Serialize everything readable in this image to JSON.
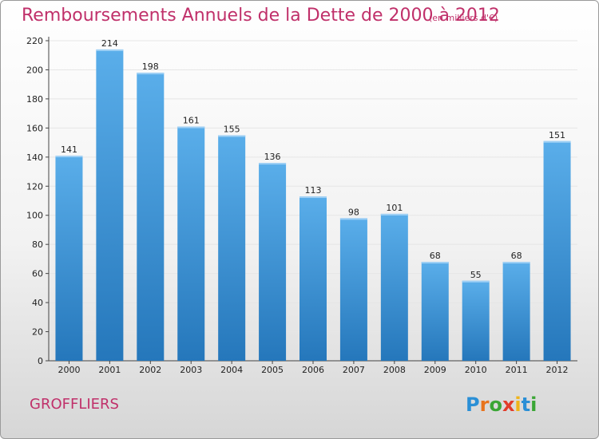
{
  "header": {
    "title": "Remboursements Annuels de la Dette de 2000 à 2012",
    "unit": "(en milliers d'€)"
  },
  "footer": {
    "town": "GROFFLIERS",
    "logo_letters": [
      "P",
      "r",
      "o",
      "x",
      "i",
      "t",
      "i"
    ],
    "logo_colors": [
      "#2a8fd6",
      "#e8731c",
      "#3aa635",
      "#e23c2a",
      "#f0b419",
      "#2a8fd6",
      "#3aa635"
    ]
  },
  "colors": {
    "bar_top": "#5aaeea",
    "bar_bottom": "#2577bb",
    "text": "#c0306a",
    "grid": "#e6e6e6"
  },
  "chart_data": {
    "type": "bar",
    "title": "Remboursements Annuels de la Dette de 2000 à 2012",
    "unit": "(en milliers d'€)",
    "categories": [
      "2000",
      "2001",
      "2002",
      "2003",
      "2004",
      "2005",
      "2006",
      "2007",
      "2008",
      "2009",
      "2010",
      "2011",
      "2012"
    ],
    "values": [
      141,
      214,
      198,
      161,
      155,
      136,
      113,
      98,
      101,
      68,
      55,
      68,
      151
    ],
    "data_labels": [
      "141",
      "214",
      "198",
      "161",
      "155",
      "136",
      "113",
      "98",
      "101",
      "68",
      "55",
      "68",
      "151"
    ],
    "yticks": [
      "0",
      "20",
      "40",
      "60",
      "80",
      "100",
      "120",
      "140",
      "160",
      "180",
      "200",
      "220"
    ],
    "ylim": [
      0,
      220
    ],
    "xlabel": "",
    "ylabel": "",
    "grid": true
  }
}
